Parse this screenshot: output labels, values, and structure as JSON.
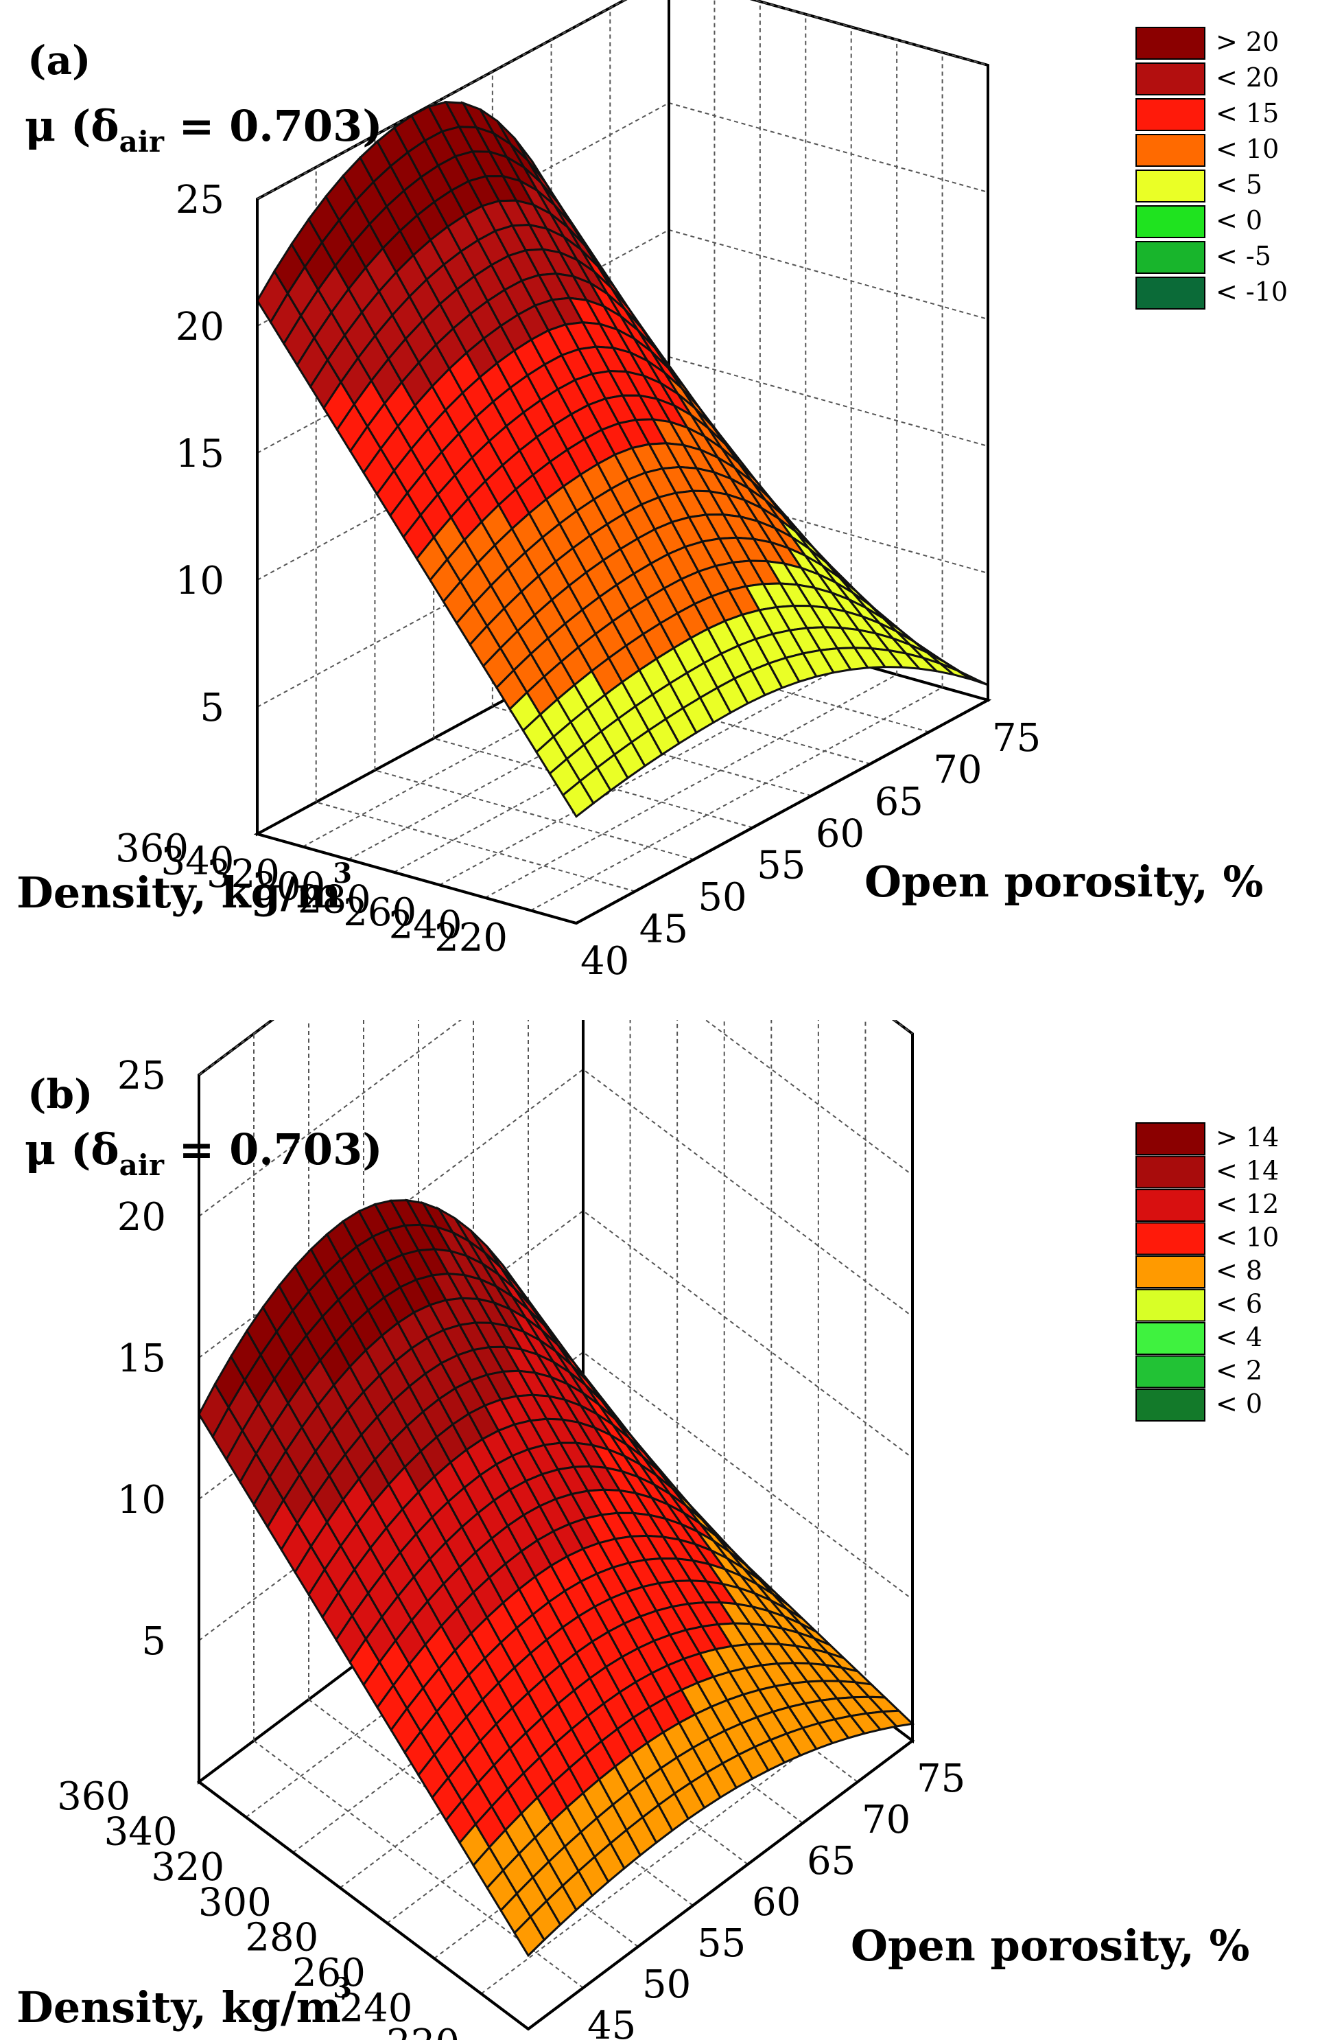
{
  "chart_data": [
    {
      "type": "surface3d",
      "panel_label": "(a)",
      "zlabel": "μ (δair = 0.703)",
      "zlabel_main": "μ (δ",
      "zlabel_sub": "air",
      "zlabel_tail": " = 0.703)",
      "xlabel": "Density, kg/m3",
      "xlabel_main": "Density, kg/m",
      "xlabel_sup": "3",
      "ylabel": "Open porosity, %",
      "x_ticks": [
        "360",
        "340",
        "320",
        "300",
        "280",
        "260",
        "240",
        "220"
      ],
      "y_ticks": [
        "40",
        "45",
        "50",
        "55",
        "60",
        "65",
        "70",
        "75"
      ],
      "z_ticks": [
        "25",
        "20",
        "15",
        "10",
        "5"
      ],
      "xlim": [
        220,
        360
      ],
      "ylim": [
        40,
        75
      ],
      "zlim": [
        0,
        25
      ],
      "legend": [
        {
          "label": "> 20",
          "color": "#8b0000"
        },
        {
          "label": "< 20",
          "color": "#b30f0f"
        },
        {
          "label": "< 15",
          "color": "#ff1a0a"
        },
        {
          "label": "< 10",
          "color": "#ff6a00"
        },
        {
          "label": "< 5",
          "color": "#eaff26"
        },
        {
          "label": "< 0",
          "color": "#1fe31f"
        },
        {
          "label": "< -5",
          "color": "#18b52c"
        },
        {
          "label": "< -10",
          "color": "#0b6b38"
        }
      ],
      "surface": {
        "peak_porosity": 54,
        "peak_value": 25,
        "value_at_40": 21,
        "value_at_75": 3
      }
    },
    {
      "type": "surface3d",
      "panel_label": "(b)",
      "zlabel": "μ (δair = 0.703)",
      "zlabel_main": "μ (δ",
      "zlabel_sub": "air",
      "zlabel_tail": " = 0.703)",
      "xlabel": "Density, kg/m3",
      "xlabel_main": "Density, kg/m",
      "xlabel_sup": "3",
      "ylabel": "Open porosity, %",
      "x_ticks": [
        "360",
        "340",
        "320",
        "300",
        "280",
        "260",
        "240",
        "220"
      ],
      "y_ticks": [
        "40",
        "45",
        "50",
        "55",
        "60",
        "65",
        "70",
        "75"
      ],
      "z_ticks": [
        "25",
        "20",
        "15",
        "10",
        "5"
      ],
      "xlim": [
        220,
        360
      ],
      "ylim": [
        40,
        75
      ],
      "zlim": [
        0,
        25
      ],
      "legend": [
        {
          "label": "> 14",
          "color": "#8b0000"
        },
        {
          "label": "< 14",
          "color": "#a80c0c"
        },
        {
          "label": "< 12",
          "color": "#d81010"
        },
        {
          "label": "< 10",
          "color": "#ff1a0a"
        },
        {
          "label": "< 8",
          "color": "#ff9a00"
        },
        {
          "label": "< 6",
          "color": "#d8ff26"
        },
        {
          "label": "< 4",
          "color": "#3ff23f"
        },
        {
          "label": "< 2",
          "color": "#22c235"
        },
        {
          "label": "< 0",
          "color": "#137a2a"
        }
      ],
      "surface": {
        "peak_porosity": 53,
        "peak_value": 16,
        "value_at_40": 13,
        "value_at_75": 3
      }
    }
  ]
}
